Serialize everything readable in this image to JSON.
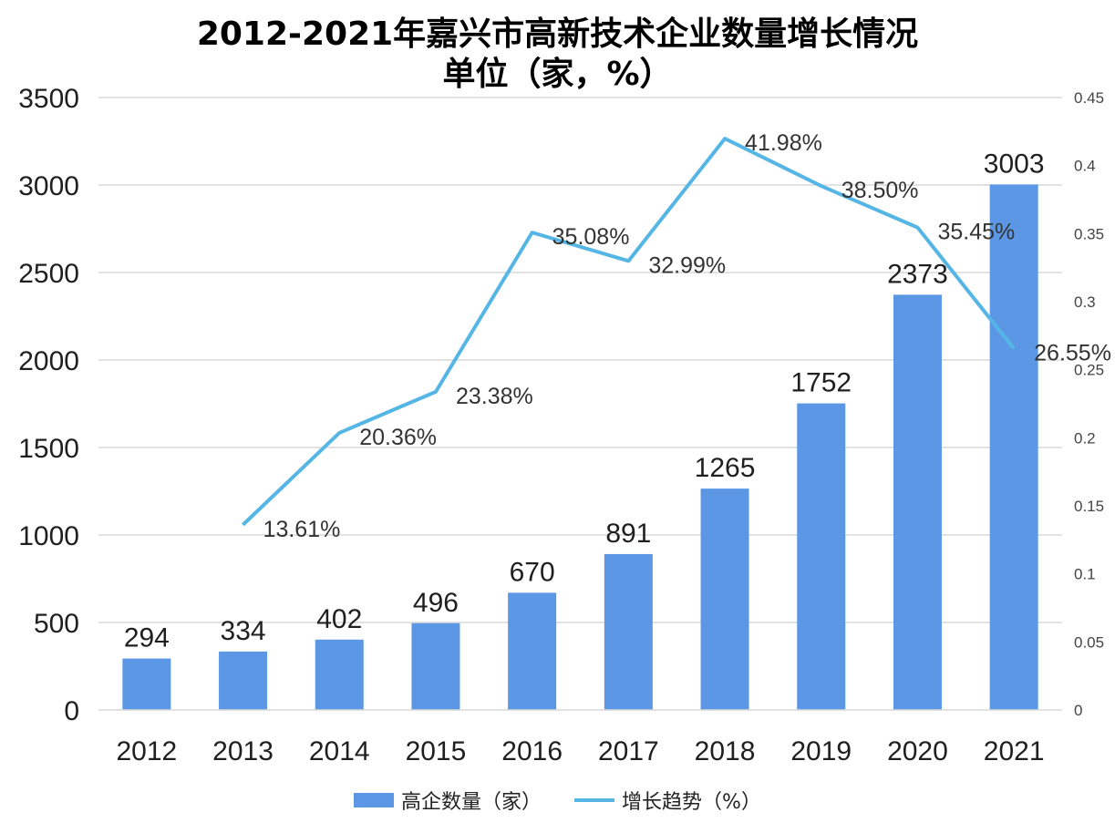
{
  "title": {
    "line1": "2012-2021年嘉兴市高新技术企业数量增长情况",
    "line2": "单位（家，%）"
  },
  "colors": {
    "bar": "#5b97e5",
    "line": "#55b6e6",
    "grid": "#d9d9d9",
    "axis_text": "#1f1f1f"
  },
  "legend": {
    "bar_label": "高企数量（家）",
    "line_label": "增长趋势（%）"
  },
  "chart_data": {
    "type": "bar",
    "categories": [
      "2012",
      "2013",
      "2014",
      "2015",
      "2016",
      "2017",
      "2018",
      "2019",
      "2020",
      "2021"
    ],
    "series": [
      {
        "name": "高企数量（家）",
        "type": "bar",
        "axis": "left",
        "values": [
          294,
          334,
          402,
          496,
          670,
          891,
          1265,
          1752,
          2373,
          3003
        ],
        "labels": [
          "294",
          "334",
          "402",
          "496",
          "670",
          "891",
          "1265",
          "1752",
          "2373",
          "3003"
        ]
      },
      {
        "name": "增长趋势（%）",
        "type": "line",
        "axis": "right",
        "values": [
          null,
          0.1361,
          0.2036,
          0.2338,
          0.3508,
          0.3299,
          0.4198,
          0.385,
          0.3545,
          0.2655
        ],
        "labels": [
          null,
          "13.61%",
          "20.36%",
          "23.38%",
          "35.08%",
          "32.99%",
          "41.98%",
          "38.50%",
          "35.45%",
          "26.55%"
        ]
      }
    ],
    "y_left": {
      "ylim": [
        0,
        3500
      ],
      "ticks": [
        "0",
        "500",
        "1000",
        "1500",
        "2000",
        "2500",
        "3000",
        "3500"
      ]
    },
    "y_right": {
      "ylim": [
        0,
        0.45
      ],
      "ticks": [
        "0",
        "0.05",
        "0.1",
        "0.15",
        "0.2",
        "0.25",
        "0.3",
        "0.35",
        "0.4",
        "0.45"
      ]
    },
    "grid": true,
    "legend_position": "bottom"
  }
}
